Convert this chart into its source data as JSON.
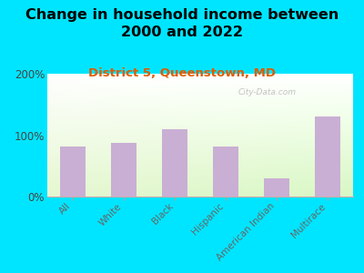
{
  "title": "Change in household income between\n2000 and 2022",
  "subtitle": "District 5, Queenstown, MD",
  "categories": [
    "All",
    "White",
    "Black",
    "Hispanic",
    "American Indian",
    "Multirace"
  ],
  "values": [
    82,
    88,
    110,
    82,
    30,
    130
  ],
  "bar_color": "#c9afd4",
  "background_outer": "#00e5ff",
  "title_fontsize": 11.5,
  "subtitle_fontsize": 9.5,
  "ylabel_ticks": [
    "0%",
    "100%",
    "200%"
  ],
  "yticks": [
    0,
    100,
    200
  ],
  "ylim": [
    0,
    200
  ],
  "watermark": "City-Data.com"
}
